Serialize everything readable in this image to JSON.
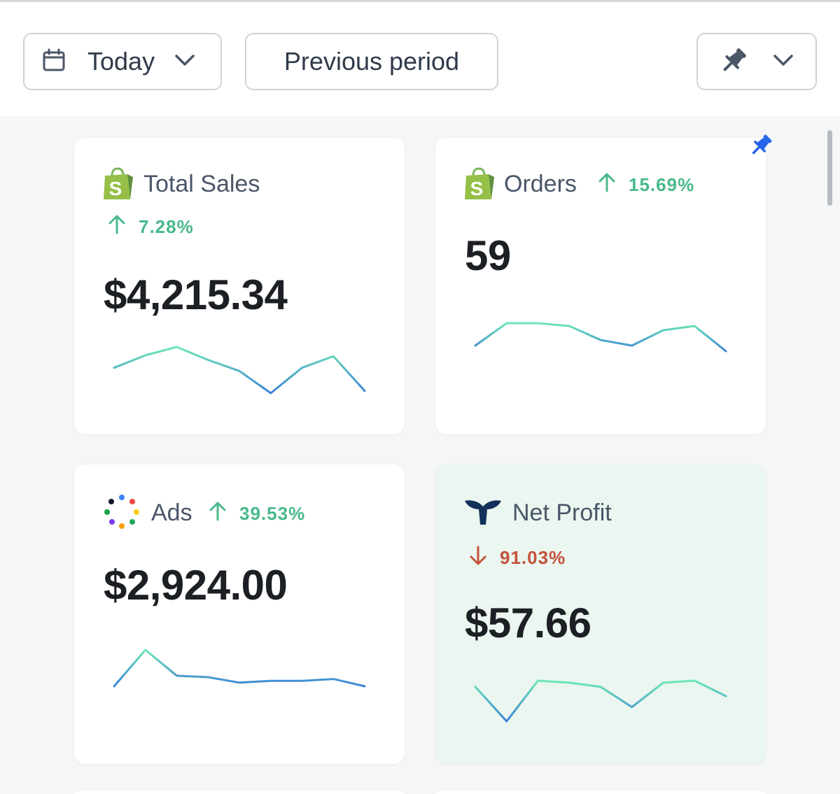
{
  "toolbar": {
    "date_label": "Today",
    "compare_label": "Previous period",
    "icons": {
      "date": "calendar-icon",
      "dropdown": "chevron-down-icon",
      "pin": "pin-icon"
    }
  },
  "colors": {
    "positive": "#48b98a",
    "negative": "#c4523a",
    "spark_start": "#6ee7b7",
    "spark_end": "#3b82d6",
    "highlight_card_bg": "#eaf6ef",
    "pinned": "#2563eb"
  },
  "cards": [
    {
      "title": "Total Sales",
      "change": "7.28%",
      "direction": "up",
      "value": "$4,215.34",
      "source_icon": "shopify-icon",
      "trend": [
        0.55,
        0.82,
        1.0,
        0.72,
        0.48,
        0.0,
        0.55,
        0.8,
        0.05
      ]
    },
    {
      "title": "Orders",
      "change": "15.69%",
      "direction": "up",
      "value": "59",
      "source_icon": "shopify-icon",
      "pinned": true,
      "trend": [
        0.2,
        1.0,
        1.0,
        0.9,
        0.4,
        0.2,
        0.75,
        0.9,
        0.0
      ]
    },
    {
      "title": "Ads",
      "change": "39.53%",
      "direction": "up",
      "value": "$2,924.00",
      "source_icon": "ads-dots-icon",
      "trend": [
        0.0,
        1.0,
        0.29,
        0.25,
        0.1,
        0.15,
        0.15,
        0.2,
        0.0
      ]
    },
    {
      "title": "Net Profit",
      "change": "91.03%",
      "direction": "down",
      "value": "$57.66",
      "source_icon": "whale-tail-icon",
      "highlighted": true,
      "trend": [
        0.85,
        0.0,
        1.0,
        0.95,
        0.85,
        0.35,
        0.95,
        1.0,
        0.62
      ]
    }
  ]
}
